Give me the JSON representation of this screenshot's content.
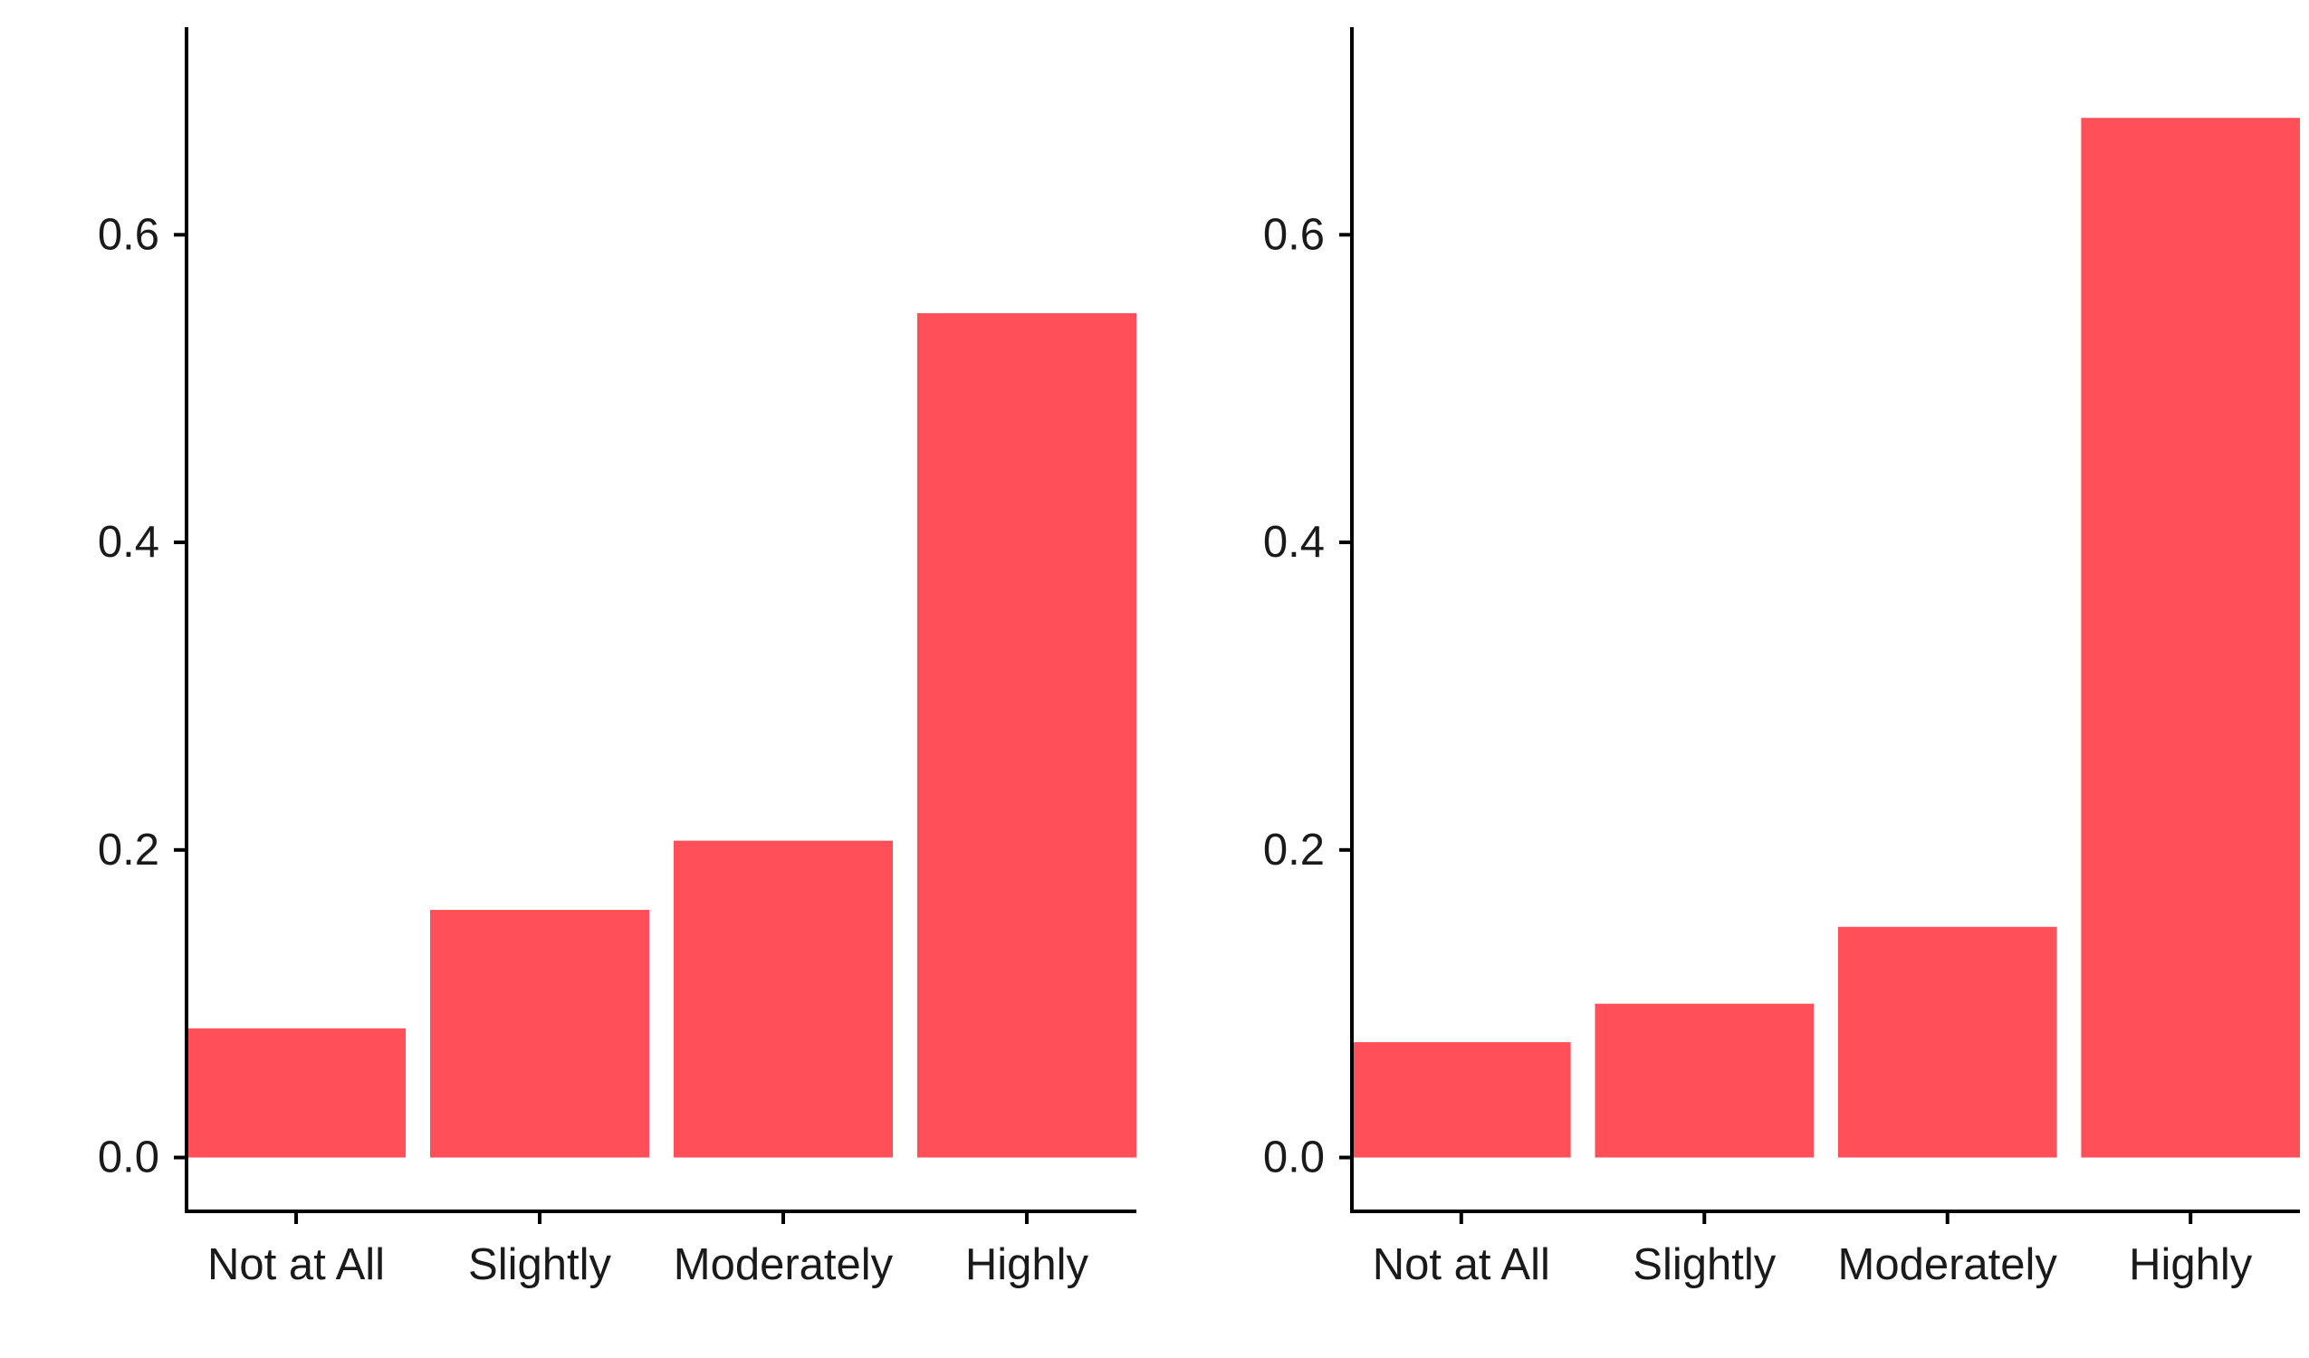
{
  "chart_data": [
    {
      "type": "bar",
      "categories": [
        "Not at All",
        "Slightly",
        "Moderately",
        "Highly"
      ],
      "values": [
        0.084,
        0.161,
        0.206,
        0.549
      ],
      "title": "",
      "xlabel": "",
      "ylabel": "",
      "ylim": [
        -0.035,
        0.735
      ],
      "yticks": [
        0.0,
        0.2,
        0.4,
        0.6
      ],
      "ytick_labels": [
        "0.0",
        "0.2",
        "0.4",
        "0.6"
      ],
      "bar_color": "#FF5059",
      "grid": false,
      "legend": "none"
    },
    {
      "type": "bar",
      "categories": [
        "Not at All",
        "Slightly",
        "Moderately",
        "Highly"
      ],
      "values": [
        0.075,
        0.1,
        0.15,
        0.676
      ],
      "title": "",
      "xlabel": "",
      "ylabel": "",
      "ylim": [
        -0.035,
        0.735
      ],
      "yticks": [
        0.0,
        0.2,
        0.4,
        0.6
      ],
      "ytick_labels": [
        "0.0",
        "0.2",
        "0.4",
        "0.6"
      ],
      "bar_color": "#FF5059",
      "grid": false,
      "legend": "none"
    }
  ]
}
